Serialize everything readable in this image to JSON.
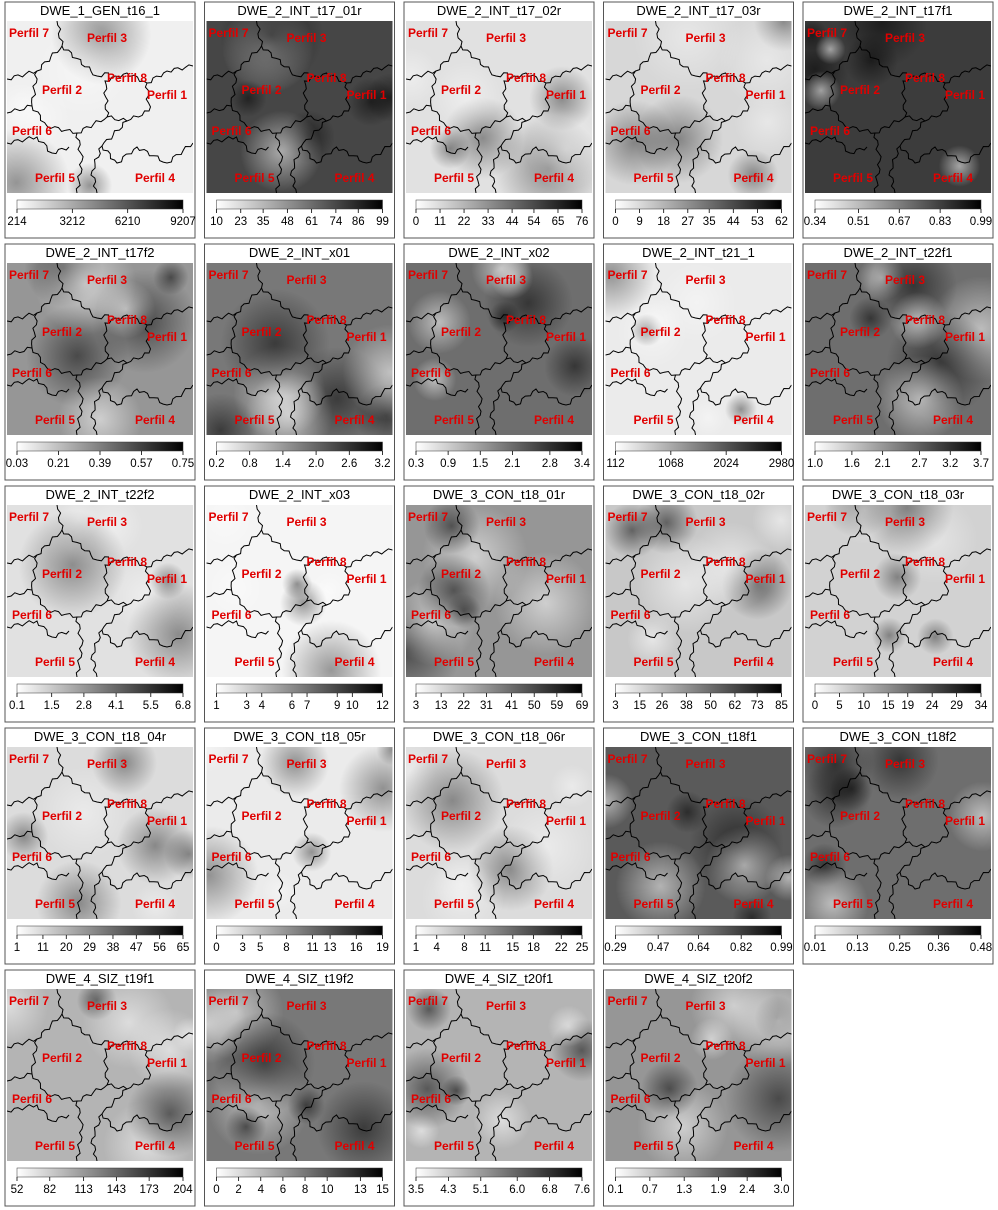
{
  "chart_data": [
    {
      "type": "heatmap",
      "title": "DWE_1_GEN_t16_1",
      "clim": [
        214,
        9207
      ],
      "cticks": [
        214,
        3212,
        6210,
        9207
      ]
    },
    {
      "type": "heatmap",
      "title": "DWE_2_INT_t17_01r",
      "clim": [
        10,
        99
      ],
      "cticks": [
        10,
        23,
        35,
        48,
        61,
        74,
        86,
        99
      ]
    },
    {
      "type": "heatmap",
      "title": "DWE_2_INT_t17_02r",
      "clim": [
        0,
        76
      ],
      "cticks": [
        0,
        11,
        22,
        33,
        44,
        54,
        65,
        76
      ]
    },
    {
      "type": "heatmap",
      "title": "DWE_2_INT_t17_03r",
      "clim": [
        0,
        62
      ],
      "cticks": [
        0,
        9,
        18,
        27,
        35,
        44,
        53,
        62
      ]
    },
    {
      "type": "heatmap",
      "title": "DWE_2_INT_t17f1",
      "clim": [
        0.34,
        0.99
      ],
      "cticks": [
        0.34,
        0.51,
        0.67,
        0.83,
        0.99
      ]
    },
    {
      "type": "heatmap",
      "title": "DWE_2_INT_t17f2",
      "clim": [
        0.03,
        0.75
      ],
      "cticks": [
        0.03,
        0.21,
        0.39,
        0.57,
        0.75
      ]
    },
    {
      "type": "heatmap",
      "title": "DWE_2_INT_x01",
      "clim": [
        0.2,
        3.2
      ],
      "cticks": [
        0.2,
        0.8,
        1.4,
        {
          "value": 2,
          "label": "2.0"
        },
        2.6,
        3.2
      ]
    },
    {
      "type": "heatmap",
      "title": "DWE_2_INT_x02",
      "clim": [
        0.3,
        3.4
      ],
      "cticks": [
        0.3,
        0.9,
        1.5,
        2.1,
        2.8,
        3.4
      ]
    },
    {
      "type": "heatmap",
      "title": "DWE_2_INT_t21_1",
      "clim": [
        112,
        2980
      ],
      "cticks": [
        112,
        1068,
        2024,
        2980
      ]
    },
    {
      "type": "heatmap",
      "title": "DWE_2_INT_t22f1",
      "clim": [
        1,
        3.7
      ],
      "cticks": [
        {
          "value": 1,
          "label": "1.0"
        },
        1.6,
        2.1,
        2.7,
        3.2,
        3.7
      ]
    },
    {
      "type": "heatmap",
      "title": "DWE_2_INT_t22f2",
      "clim": [
        0.1,
        6.8
      ],
      "cticks": [
        0.1,
        1.5,
        2.8,
        4.1,
        5.5,
        6.8
      ]
    },
    {
      "type": "heatmap",
      "title": "DWE_2_INT_x03",
      "clim": [
        1,
        12
      ],
      "cticks": [
        1,
        3,
        4,
        6,
        7,
        9,
        10,
        12
      ]
    },
    {
      "type": "heatmap",
      "title": "DWE_3_CON_t18_01r",
      "clim": [
        3,
        69
      ],
      "cticks": [
        3,
        13,
        22,
        31,
        41,
        50,
        59,
        69
      ]
    },
    {
      "type": "heatmap",
      "title": "DWE_3_CON_t18_02r",
      "clim": [
        3,
        85
      ],
      "cticks": [
        3,
        15,
        26,
        38,
        50,
        62,
        73,
        85
      ]
    },
    {
      "type": "heatmap",
      "title": "DWE_3_CON_t18_03r",
      "clim": [
        0,
        34
      ],
      "cticks": [
        0,
        5,
        10,
        15,
        19,
        24,
        29,
        34
      ]
    },
    {
      "type": "heatmap",
      "title": "DWE_3_CON_t18_04r",
      "clim": [
        1,
        65
      ],
      "cticks": [
        1,
        11,
        20,
        29,
        38,
        47,
        56,
        65
      ]
    },
    {
      "type": "heatmap",
      "title": "DWE_3_CON_t18_05r",
      "clim": [
        0,
        19
      ],
      "cticks": [
        0,
        3,
        5,
        8,
        11,
        13,
        16,
        19
      ]
    },
    {
      "type": "heatmap",
      "title": "DWE_3_CON_t18_06r",
      "clim": [
        1,
        25
      ],
      "cticks": [
        1,
        4,
        8,
        11,
        15,
        18,
        22,
        25
      ]
    },
    {
      "type": "heatmap",
      "title": "DWE_3_CON_t18f1",
      "clim": [
        0.29,
        0.99
      ],
      "cticks": [
        0.29,
        0.47,
        0.64,
        0.82,
        0.99
      ]
    },
    {
      "type": "heatmap",
      "title": "DWE_3_CON_t18f2",
      "clim": [
        0.01,
        0.48
      ],
      "cticks": [
        0.01,
        0.13,
        0.25,
        0.36,
        0.48
      ]
    },
    {
      "type": "heatmap",
      "title": "DWE_4_SIZ_t19f1",
      "clim": [
        52,
        204
      ],
      "cticks": [
        52,
        82,
        113,
        143,
        173,
        204
      ]
    },
    {
      "type": "heatmap",
      "title": "DWE_4_SIZ_t19f2",
      "clim": [
        0,
        15
      ],
      "cticks": [
        0,
        2,
        4,
        6,
        8,
        10,
        13,
        15
      ]
    },
    {
      "type": "heatmap",
      "title": "DWE_4_SIZ_t20f1",
      "clim": [
        3.5,
        7.6
      ],
      "cticks": [
        3.5,
        4.3,
        5.1,
        {
          "value": 6,
          "label": "6.0"
        },
        6.8,
        7.6
      ]
    },
    {
      "type": "heatmap",
      "title": "DWE_4_SIZ_t20f2",
      "clim": [
        0.1,
        3
      ],
      "cticks": [
        0.1,
        0.7,
        1.3,
        1.9,
        2.4,
        {
          "value": 3,
          "label": "3.0"
        }
      ]
    }
  ],
  "region_labels": [
    "Perfil 1",
    "Perfil 2",
    "Perfil 3",
    "Perfil 4",
    "Perfil 5",
    "Perfil 6",
    "Perfil 7",
    "Perfil 8"
  ]
}
